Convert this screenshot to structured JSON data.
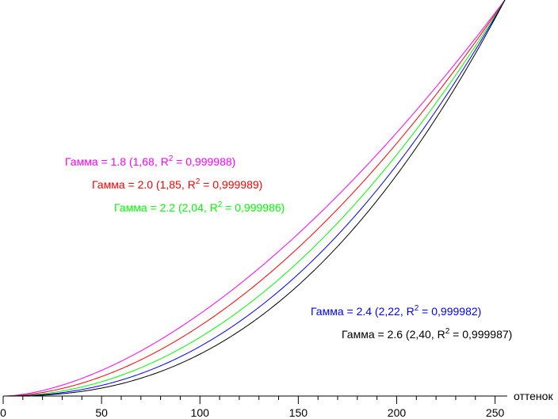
{
  "chart_data": {
    "type": "line",
    "title": "",
    "xlabel": "оттенок",
    "ylabel": "",
    "xlim": [
      0,
      255
    ],
    "ylim": [
      0,
      255
    ],
    "x_ticks": [
      0,
      50,
      100,
      150,
      200,
      250
    ],
    "x_minor_step": 10,
    "grid": false,
    "series": [
      {
        "name": "Гамма = 1.8",
        "gamma": 1.68,
        "label_main": "Гамма = 1.8 (1,68, R",
        "sup": "2",
        "label_tail": " = 0,999988)",
        "color": "#ff00ff"
      },
      {
        "name": "Гамма = 2.0",
        "gamma": 1.85,
        "label_main": "Гамма = 2.0 (1,85, R",
        "sup": "2",
        "label_tail": " = 0,999989)",
        "color": "#ff0000"
      },
      {
        "name": "Гамма = 2.2",
        "gamma": 2.04,
        "label_main": "Гамма = 2.2 (2,04, R",
        "sup": "2",
        "label_tail": " = 0,999986)",
        "color": "#00ff00"
      },
      {
        "name": "Гамма = 2.4",
        "gamma": 2.22,
        "label_main": "Гамма = 2.4 (2,22, R",
        "sup": "2",
        "label_tail": " = 0,999982)",
        "color": "#0000ff"
      },
      {
        "name": "Гамма = 2.6",
        "gamma": 2.4,
        "label_main": "Гамма = 2.6 (2,40, R",
        "sup": "2",
        "label_tail": " = 0,999987)",
        "color": "#000000"
      }
    ]
  }
}
